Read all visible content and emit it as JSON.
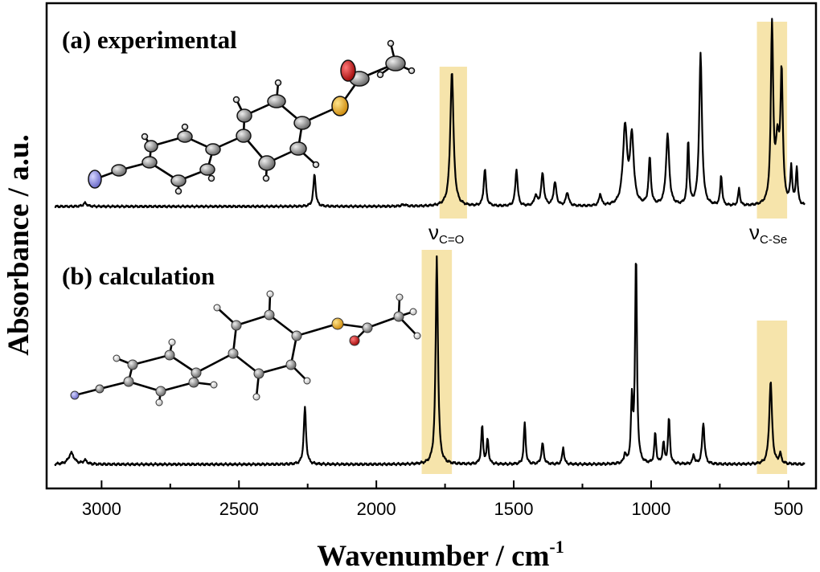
{
  "chart_data": {
    "type": "line",
    "xlabel": "Wavenumber / cm",
    "xlabel_sup": "-1",
    "ylabel": "Absorbance / a.u.",
    "xlim": [
      3200,
      400
    ],
    "x_reversed": true,
    "x_ticks": [
      3000,
      2500,
      2000,
      1500,
      1000,
      500
    ],
    "series": [
      {
        "name": "(a) experimental",
        "peaks": [
          {
            "x": 3060,
            "h": 0.02,
            "w": 8
          },
          {
            "x": 2225,
            "h": 0.19,
            "w": 5
          },
          {
            "x": 1900,
            "h": 0.01,
            "w": 10
          },
          {
            "x": 1725,
            "h": 0.8,
            "w": 7
          },
          {
            "x": 1605,
            "h": 0.22,
            "w": 5
          },
          {
            "x": 1490,
            "h": 0.22,
            "w": 5
          },
          {
            "x": 1420,
            "h": 0.06,
            "w": 6
          },
          {
            "x": 1395,
            "h": 0.19,
            "w": 6
          },
          {
            "x": 1350,
            "h": 0.14,
            "w": 6
          },
          {
            "x": 1305,
            "h": 0.08,
            "w": 6
          },
          {
            "x": 1185,
            "h": 0.07,
            "w": 5
          },
          {
            "x": 1095,
            "h": 0.46,
            "w": 9
          },
          {
            "x": 1070,
            "h": 0.4,
            "w": 8
          },
          {
            "x": 1005,
            "h": 0.28,
            "w": 5
          },
          {
            "x": 940,
            "h": 0.42,
            "w": 7
          },
          {
            "x": 865,
            "h": 0.38,
            "w": 4
          },
          {
            "x": 820,
            "h": 0.9,
            "w": 6
          },
          {
            "x": 745,
            "h": 0.18,
            "w": 4
          },
          {
            "x": 680,
            "h": 0.1,
            "w": 4
          },
          {
            "x": 560,
            "h": 1.05,
            "w": 5
          },
          {
            "x": 540,
            "h": 0.35,
            "w": 8
          },
          {
            "x": 525,
            "h": 0.75,
            "w": 5
          },
          {
            "x": 490,
            "h": 0.22,
            "w": 4
          },
          {
            "x": 470,
            "h": 0.22,
            "w": 4
          }
        ]
      },
      {
        "name": "(b) calculation",
        "peaks": [
          {
            "x": 3110,
            "h": 0.06,
            "w": 12
          },
          {
            "x": 3060,
            "h": 0.02,
            "w": 8
          },
          {
            "x": 2260,
            "h": 0.3,
            "w": 5
          },
          {
            "x": 1780,
            "h": 1.1,
            "w": 5
          },
          {
            "x": 1615,
            "h": 0.2,
            "w": 4
          },
          {
            "x": 1595,
            "h": 0.13,
            "w": 4
          },
          {
            "x": 1460,
            "h": 0.22,
            "w": 4
          },
          {
            "x": 1395,
            "h": 0.11,
            "w": 5
          },
          {
            "x": 1320,
            "h": 0.09,
            "w": 4
          },
          {
            "x": 1095,
            "h": 0.05,
            "w": 4
          },
          {
            "x": 1070,
            "h": 0.32,
            "w": 4
          },
          {
            "x": 1055,
            "h": 1.1,
            "w": 4
          },
          {
            "x": 985,
            "h": 0.16,
            "w": 4
          },
          {
            "x": 955,
            "h": 0.11,
            "w": 4
          },
          {
            "x": 935,
            "h": 0.24,
            "w": 4
          },
          {
            "x": 845,
            "h": 0.05,
            "w": 4
          },
          {
            "x": 810,
            "h": 0.22,
            "w": 5
          },
          {
            "x": 565,
            "h": 0.44,
            "w": 6
          },
          {
            "x": 530,
            "h": 0.05,
            "w": 5
          }
        ]
      }
    ],
    "highlights": [
      {
        "series": 0,
        "x_range": [
          1770,
          1670
        ],
        "label": "ν",
        "label_sub": "C=O"
      },
      {
        "series": 0,
        "x_range": [
          615,
          505
        ],
        "label": "ν",
        "label_sub": "C-Se"
      },
      {
        "series": 1,
        "x_range": [
          1835,
          1725
        ]
      },
      {
        "series": 1,
        "x_range": [
          615,
          505
        ]
      }
    ],
    "highlight_color": "#f5df9c",
    "molecule_colors": {
      "carbon": "#7d7d7d",
      "hydrogen": "#ffffff",
      "nitrogen": "#8f8fe0",
      "oxygen": "#cc1f1f",
      "selenium": "#f0b42a"
    },
    "grid": false,
    "legend": "none"
  }
}
